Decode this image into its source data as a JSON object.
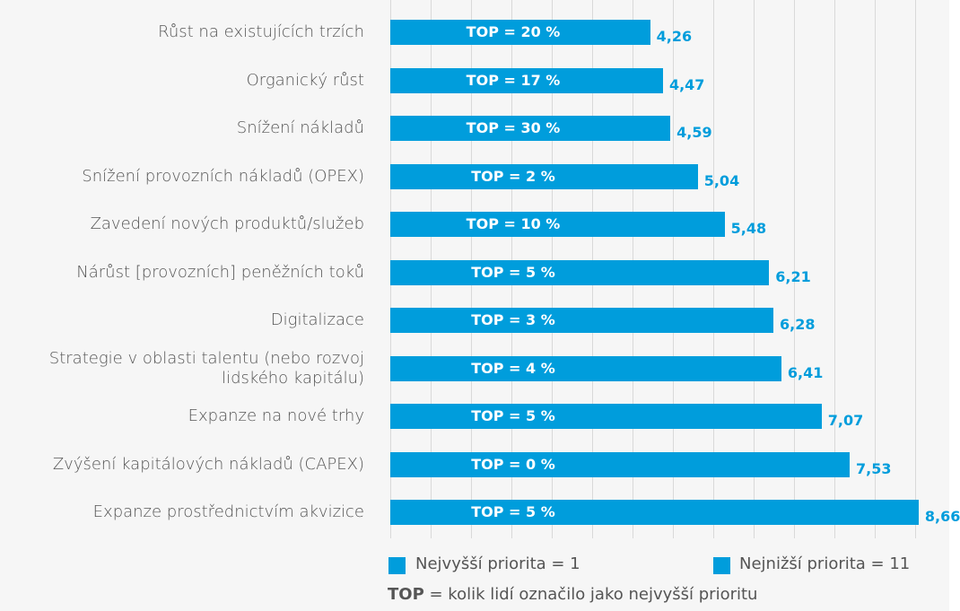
{
  "chart_data": {
    "type": "bar",
    "orientation": "horizontal",
    "categories": [
      "Růst na existujících trzích",
      "Organický růst",
      "Snížení nákladů",
      "Snížení provozních nákladů (OPEX)",
      "Zavedení nových produktů/služeb",
      "Nárůst [provozních] peněžních toků",
      "Digitalizace",
      "Strategie v oblasti talentu (nebo rozvoj lidského kapitálu)",
      "Expanze na nové trhy",
      "Zvýšení kapitálových nákladů (CAPEX)",
      "Expanze prostřednictvím akvizice"
    ],
    "values": [
      4.26,
      4.47,
      4.59,
      5.04,
      5.48,
      6.21,
      6.28,
      6.41,
      7.07,
      7.53,
      8.66
    ],
    "value_labels": [
      "4,26",
      "4,47",
      "4,59",
      "5,04",
      "5,48",
      "6,21",
      "6,28",
      "6,41",
      "7,07",
      "7,53",
      "8,66"
    ],
    "top_labels": [
      "TOP = 20 %",
      "TOP = 17 %",
      "TOP = 30 %",
      "TOP = 2 %",
      "TOP = 10 %",
      "TOP = 5 %",
      "TOP = 3 %",
      "TOP = 4 %",
      "TOP = 5 %",
      "TOP = 0 %",
      "TOP = 5 %"
    ],
    "color": "#009ddc",
    "xlim": [
      0,
      9
    ],
    "legend": [
      "Nejvyšší priorita = 1",
      "Nejnižší priorita = 11"
    ],
    "note": {
      "bold": "TOP",
      "text": " = kolik lidí označilo jako nejvyšší prioritu"
    }
  }
}
